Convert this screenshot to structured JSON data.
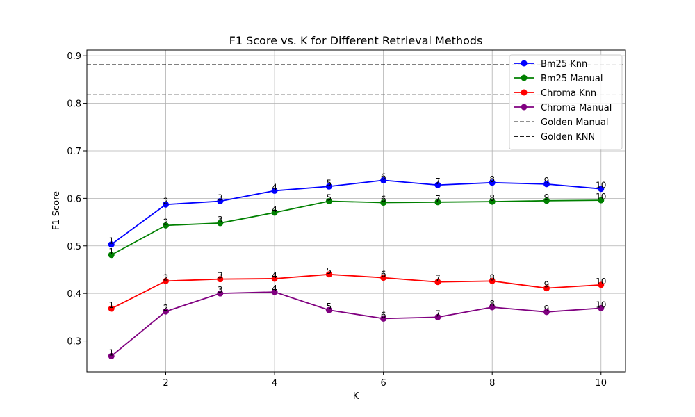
{
  "chart_data": {
    "type": "line",
    "title": "F1 Score vs. K for Different Retrieval Methods",
    "xlabel": "K",
    "ylabel": "F1 Score",
    "xlim": [
      0.55,
      10.45
    ],
    "ylim": [
      0.235,
      0.912
    ],
    "xticks": [
      2,
      4,
      6,
      8,
      10
    ],
    "yticks": [
      0.3,
      0.4,
      0.5,
      0.6,
      0.7,
      0.8,
      0.9
    ],
    "grid": true,
    "legend_position": "top-right",
    "x": [
      1,
      2,
      3,
      4,
      5,
      6,
      7,
      8,
      9,
      10
    ],
    "point_labels": [
      "1",
      "2",
      "3",
      "4",
      "5",
      "6",
      "7",
      "8",
      "9",
      "10"
    ],
    "series": [
      {
        "name": "Bm25 Knn",
        "color": "#0000ff",
        "values": [
          0.503,
          0.587,
          0.594,
          0.616,
          0.625,
          0.638,
          0.628,
          0.633,
          0.63,
          0.62
        ]
      },
      {
        "name": "Bm25 Manual",
        "color": "#008000",
        "values": [
          0.481,
          0.543,
          0.548,
          0.57,
          0.594,
          0.591,
          0.592,
          0.593,
          0.595,
          0.596
        ]
      },
      {
        "name": "Chroma Knn",
        "color": "#ff0000",
        "values": [
          0.368,
          0.426,
          0.43,
          0.431,
          0.44,
          0.433,
          0.424,
          0.426,
          0.411,
          0.418
        ]
      },
      {
        "name": "Chroma Manual",
        "color": "#800080",
        "values": [
          0.268,
          0.362,
          0.4,
          0.403,
          0.365,
          0.347,
          0.35,
          0.371,
          0.361,
          0.369
        ]
      }
    ],
    "reference_lines": [
      {
        "name": "Golden Manual",
        "color": "#808080",
        "value": 0.818
      },
      {
        "name": "Golden KNN",
        "color": "#000000",
        "value": 0.881
      }
    ]
  }
}
